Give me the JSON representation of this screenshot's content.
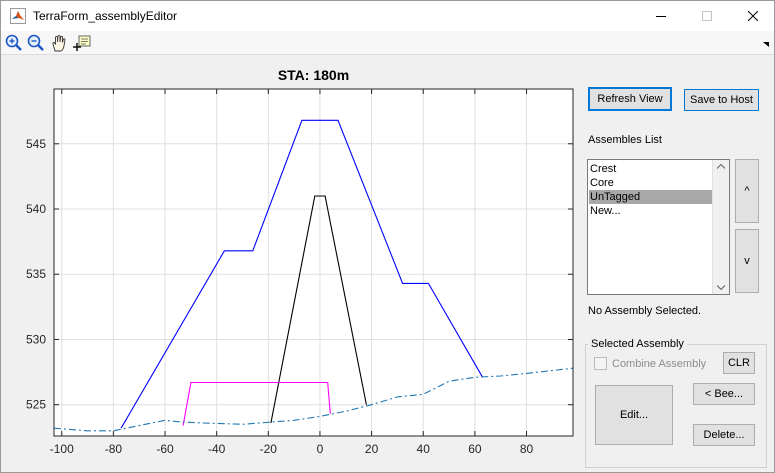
{
  "window": {
    "title": "TerraForm_assemblyEditor"
  },
  "icons": {
    "app": "matlab-icon",
    "zoom_in": "zoom-in-icon",
    "zoom_out": "zoom-out-icon",
    "pan": "pan-hand-icon",
    "data_cursor": "data-cursor-icon",
    "expand": "toolbar-expand-icon"
  },
  "plot": {
    "title": "STA: 180m"
  },
  "chart_data": {
    "type": "line",
    "title": "STA: 180m",
    "xlabel": "",
    "ylabel": "",
    "xlim": [
      -103,
      98
    ],
    "ylim": [
      522.6,
      549.2
    ],
    "x_ticks": [
      -100,
      -80,
      -60,
      -40,
      -20,
      0,
      20,
      40,
      60,
      80
    ],
    "y_ticks": [
      525,
      530,
      535,
      540,
      545
    ],
    "grid": true,
    "series": [
      {
        "color": "#0000ff",
        "style": "solid",
        "x": [
          -77,
          -37,
          -26,
          -7,
          7,
          32,
          42,
          63
        ],
        "y": [
          523.2,
          536.8,
          536.8,
          546.8,
          546.8,
          534.3,
          534.3,
          527.1
        ]
      },
      {
        "color": "#000000",
        "style": "solid",
        "x": [
          -19,
          -2,
          2,
          18
        ],
        "y": [
          523.6,
          541.0,
          541.0,
          525.0
        ]
      },
      {
        "color": "#ff00ff",
        "style": "solid",
        "x": [
          -53,
          -50,
          3,
          4
        ],
        "y": [
          523.4,
          526.7,
          526.7,
          524.3
        ]
      },
      {
        "color": "#1f77b4",
        "style": "dashdot",
        "x": [
          -103,
          -90,
          -80,
          -60,
          -55,
          -45,
          -30,
          -10,
          0,
          10,
          20,
          30,
          40,
          50,
          60,
          70,
          80,
          98
        ],
        "y": [
          523.2,
          523.0,
          523.0,
          523.8,
          523.7,
          523.6,
          523.5,
          523.8,
          524.1,
          524.5,
          525.0,
          525.6,
          525.8,
          526.8,
          527.1,
          527.2,
          527.4,
          527.8
        ]
      }
    ]
  },
  "panel": {
    "refresh_label": "Refresh View",
    "save_label": "Save to Host",
    "assemblies_label": "Assembles List",
    "assemblies": [
      "Crest",
      "Core",
      "UnTagged",
      "New..."
    ],
    "selected_index": 2,
    "up_label": "^",
    "down_label": "v",
    "status": "No Assembly Selected.",
    "group_title": "Selected Assembly",
    "combine_label": "Combine Assembly",
    "combine_checked": false,
    "clr_label": "CLR",
    "edit_label": "Edit...",
    "bee_label": "< Bee...",
    "delete_label": "Delete..."
  }
}
